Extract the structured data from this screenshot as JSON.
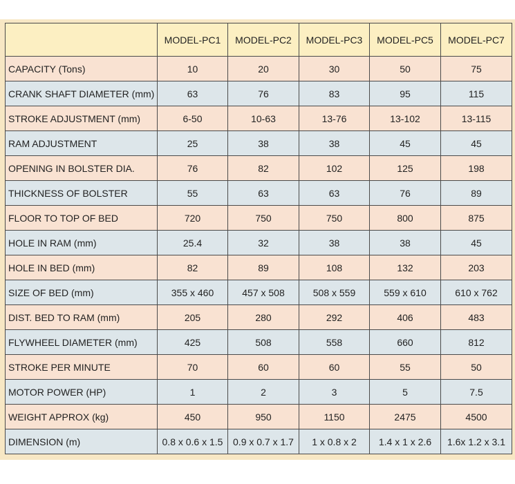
{
  "table": {
    "header": [
      "MODEL-PC1",
      "MODEL-PC2",
      "MODEL-PC3",
      "MODEL-PC5",
      "MODEL-PC7"
    ],
    "rows": [
      [
        "CAPACITY (Tons)",
        "10",
        "20",
        "30",
        "50",
        "75"
      ],
      [
        "CRANK SHAFT DIAMETER (mm)",
        "63",
        "76",
        "83",
        "95",
        "115"
      ],
      [
        "STROKE ADJUSTMENT (mm)",
        "6-50",
        "10-63",
        "13-76",
        "13-102",
        "13-115"
      ],
      [
        "RAM ADJUSTMENT",
        "25",
        "38",
        "38",
        "45",
        "45"
      ],
      [
        "OPENING IN BOLSTER DIA.",
        "76",
        "82",
        "102",
        "125",
        "198"
      ],
      [
        "THICKNESS OF BOLSTER",
        "55",
        "63",
        "63",
        "76",
        "89"
      ],
      [
        "FLOOR TO TOP OF BED",
        "720",
        "750",
        "750",
        "800",
        "875"
      ],
      [
        "HOLE IN RAM (mm)",
        "25.4",
        "32",
        "38",
        "38",
        "45"
      ],
      [
        "HOLE IN BED (mm)",
        "82",
        "89",
        "108",
        "132",
        "203"
      ],
      [
        "SIZE OF BED (mm)",
        "355 x 460",
        "457 x 508",
        "508 x 559",
        "559 x 610",
        "610 x 762"
      ],
      [
        "DIST. BED TO RAM (mm)",
        "205",
        "280",
        "292",
        "406",
        "483"
      ],
      [
        "FLYWHEEL DIAMETER (mm)",
        "425",
        "508",
        "558",
        "660",
        "812"
      ],
      [
        "STROKE PER MINUTE",
        "70",
        "60",
        "60",
        "55",
        "50"
      ],
      [
        "MOTOR POWER (HP)",
        "1",
        "2",
        "3",
        "5",
        "7.5"
      ],
      [
        "WEIGHT APPROX (kg)",
        "450",
        "950",
        "1150",
        "2475",
        "4500"
      ],
      [
        "DIMENSION (m)",
        "0.8 x 0.6 x 1.5",
        "0.9 x 0.7 x 1.7",
        "1 x 0.8 x 2",
        "1.4 x 1 x 2.6",
        "1.6x 1.2 x 3.1"
      ]
    ]
  }
}
